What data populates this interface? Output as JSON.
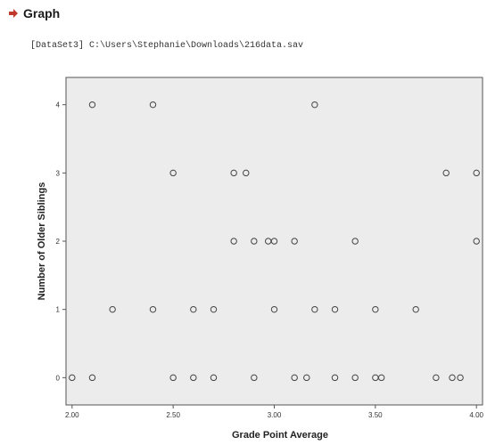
{
  "header": {
    "title": "Graph",
    "dataset_path": "[DataSet3] C:\\Users\\Stephanie\\Downloads\\216data.sav"
  },
  "icons": {
    "heading": "arrow-right-icon"
  },
  "colors": {
    "plot_bg": "#ececec",
    "marker_stroke": "#444444",
    "arrow": "#c0392b"
  },
  "chart_data": {
    "type": "scatter",
    "title": "",
    "xlabel": "Grade Point Average",
    "ylabel": "Number of Older Siblings",
    "xlim": [
      1.97,
      4.03
    ],
    "ylim": [
      -0.4,
      4.4
    ],
    "xticks": [
      2.0,
      2.5,
      3.0,
      3.5,
      4.0
    ],
    "xtick_labels": [
      "2.00",
      "2.50",
      "3.00",
      "3.50",
      "4.00"
    ],
    "yticks": [
      0,
      1,
      2,
      3,
      4
    ],
    "ytick_labels": [
      "0",
      "1",
      "2",
      "3",
      "4"
    ],
    "grid": false,
    "legend": "none",
    "points": [
      {
        "x": 2.1,
        "y": 4
      },
      {
        "x": 2.4,
        "y": 4
      },
      {
        "x": 3.2,
        "y": 4
      },
      {
        "x": 2.5,
        "y": 3
      },
      {
        "x": 2.8,
        "y": 3
      },
      {
        "x": 2.86,
        "y": 3
      },
      {
        "x": 3.85,
        "y": 3
      },
      {
        "x": 4.0,
        "y": 3
      },
      {
        "x": 2.8,
        "y": 2
      },
      {
        "x": 2.9,
        "y": 2
      },
      {
        "x": 2.97,
        "y": 2
      },
      {
        "x": 3.0,
        "y": 2
      },
      {
        "x": 3.1,
        "y": 2
      },
      {
        "x": 3.4,
        "y": 2
      },
      {
        "x": 4.0,
        "y": 2
      },
      {
        "x": 2.2,
        "y": 1
      },
      {
        "x": 2.4,
        "y": 1
      },
      {
        "x": 2.6,
        "y": 1
      },
      {
        "x": 2.7,
        "y": 1
      },
      {
        "x": 3.0,
        "y": 1
      },
      {
        "x": 3.2,
        "y": 1
      },
      {
        "x": 3.3,
        "y": 1
      },
      {
        "x": 3.5,
        "y": 1
      },
      {
        "x": 3.7,
        "y": 1
      },
      {
        "x": 2.0,
        "y": 0
      },
      {
        "x": 2.1,
        "y": 0
      },
      {
        "x": 2.5,
        "y": 0
      },
      {
        "x": 2.6,
        "y": 0
      },
      {
        "x": 2.7,
        "y": 0
      },
      {
        "x": 2.9,
        "y": 0
      },
      {
        "x": 3.1,
        "y": 0
      },
      {
        "x": 3.16,
        "y": 0
      },
      {
        "x": 3.3,
        "y": 0
      },
      {
        "x": 3.4,
        "y": 0
      },
      {
        "x": 3.5,
        "y": 0
      },
      {
        "x": 3.53,
        "y": 0
      },
      {
        "x": 3.8,
        "y": 0
      },
      {
        "x": 3.88,
        "y": 0
      },
      {
        "x": 3.92,
        "y": 0
      }
    ]
  }
}
